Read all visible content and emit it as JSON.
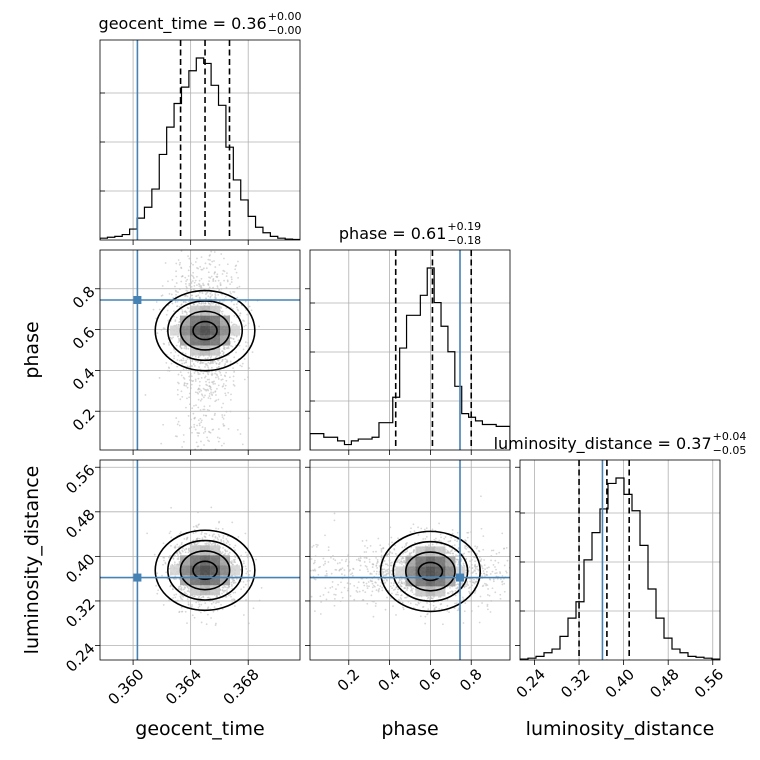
{
  "chart_data": {
    "type": "corner",
    "parameters": [
      "geocent_time",
      "phase",
      "luminosity_distance"
    ],
    "truths": {
      "geocent_time": 0.3603,
      "phase": 0.745,
      "luminosity_distance": 0.362
    },
    "titles": [
      {
        "param": "geocent_time",
        "prefix": "geocent_time = 0.36",
        "upper": "+0.00",
        "lower": "−0.00"
      },
      {
        "param": "phase",
        "prefix": "phase = 0.61",
        "upper": "+0.19",
        "lower": "−0.18"
      },
      {
        "param": "luminosity_distance",
        "prefix": "luminosity_distance = 0.37",
        "upper": "+0.04",
        "lower": "−0.05"
      }
    ],
    "ranges": {
      "geocent_time": [
        0.3577,
        0.3716
      ],
      "phase": [
        0.01,
        0.99
      ],
      "luminosity_distance": [
        0.214,
        0.573
      ]
    },
    "ticks": {
      "geocent_time": [
        0.36,
        0.364,
        0.368
      ],
      "phase": [
        0.2,
        0.4,
        0.6,
        0.8
      ],
      "luminosity_distance": [
        0.24,
        0.32,
        0.4,
        0.48,
        0.56
      ]
    },
    "tick_labels": {
      "geocent_time": [
        "0.360",
        "0.364",
        "0.368"
      ],
      "phase": [
        "0.2",
        "0.4",
        "0.6",
        "0.8"
      ],
      "luminosity_distance": [
        "0.24",
        "0.32",
        "0.40",
        "0.48",
        "0.56"
      ]
    },
    "quantiles": {
      "geocent_time": [
        0.3633,
        0.365,
        0.3667
      ],
      "phase": [
        0.43,
        0.61,
        0.8
      ],
      "luminosity_distance": [
        0.32,
        0.37,
        0.41
      ]
    },
    "histograms": {
      "geocent_time": {
        "edges_range": [
          0.3577,
          0.3716
        ],
        "counts": [
          0.01,
          0.015,
          0.02,
          0.03,
          0.06,
          0.12,
          0.18,
          0.28,
          0.47,
          0.62,
          0.75,
          0.84,
          0.93,
          1.0,
          0.97,
          0.85,
          0.74,
          0.51,
          0.33,
          0.22,
          0.13,
          0.07,
          0.04,
          0.02,
          0.01,
          0.005,
          0.003
        ]
      },
      "phase": {
        "edges_range": [
          0.01,
          0.99
        ],
        "counts": [
          0.09,
          0.09,
          0.07,
          0.07,
          0.05,
          0.03,
          0.05,
          0.06,
          0.06,
          0.07,
          0.15,
          0.15,
          0.29,
          0.56,
          0.74,
          0.74,
          0.85,
          1.0,
          0.81,
          0.68,
          0.54,
          0.35,
          0.2,
          0.18,
          0.16,
          0.14,
          0.14,
          0.13,
          0.13
        ]
      },
      "luminosity_distance": {
        "edges_range": [
          0.214,
          0.573
        ],
        "counts": [
          0.005,
          0.01,
          0.02,
          0.04,
          0.06,
          0.13,
          0.23,
          0.32,
          0.55,
          0.7,
          0.83,
          0.97,
          1.0,
          0.91,
          0.82,
          0.63,
          0.39,
          0.23,
          0.12,
          0.06,
          0.04,
          0.02,
          0.015,
          0.01,
          0.005
        ]
      }
    },
    "contour_levels_sigma": [
      0.5,
      1.0,
      1.5,
      2.0
    ],
    "posterior_centers": {
      "geocent_time__phase": [
        0.365,
        0.595
      ],
      "geocent_time__luminosity_distance": [
        0.365,
        0.375
      ],
      "phase__luminosity_distance": [
        0.6,
        0.373
      ]
    }
  }
}
